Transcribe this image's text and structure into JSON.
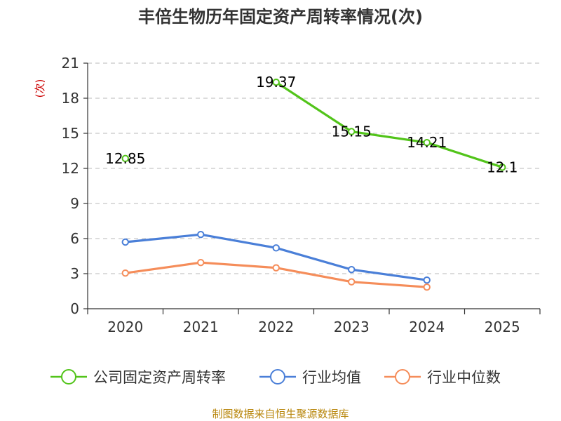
{
  "chart_data": {
    "type": "line",
    "title": "丰倍生物历年固定资产周转率情况(次)",
    "ylabel": "(次)",
    "xlabel": "",
    "categories": [
      "2020",
      "2021",
      "2022",
      "2023",
      "2024",
      "2025"
    ],
    "ylim": [
      0,
      21
    ],
    "yticks": [
      0,
      3,
      6,
      9,
      12,
      15,
      18,
      21
    ],
    "grid": true,
    "series": [
      {
        "name": "公司固定资产周转率",
        "color": "#52c41a",
        "values": [
          12.85,
          null,
          19.37,
          15.15,
          14.21,
          12.1
        ],
        "labels": [
          "12.85",
          null,
          "19.37",
          "15.15",
          "14.21",
          "12.1"
        ]
      },
      {
        "name": "行业均值",
        "color": "#4a7fd8",
        "values": [
          5.7,
          6.35,
          5.2,
          3.35,
          2.45,
          null
        ]
      },
      {
        "name": "行业中位数",
        "color": "#f58d5a",
        "values": [
          3.05,
          3.95,
          3.5,
          2.3,
          1.85,
          null
        ]
      }
    ],
    "legend_position": "bottom",
    "source": "制图数据来自恒生聚源数据库"
  }
}
